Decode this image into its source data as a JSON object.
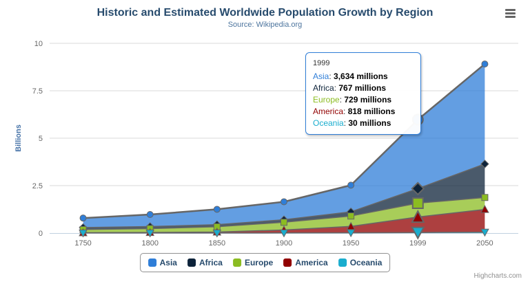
{
  "chart": {
    "title": "Historic and Estimated Worldwide Population Growth by Region",
    "subtitle": "Source: Wikipedia.org",
    "credits": "Highcharts.com"
  },
  "chart_data": {
    "type": "area",
    "stacking": "normal",
    "title": "Historic and Estimated Worldwide Population Growth by Region",
    "subtitle": "Source: Wikipedia.org",
    "categories": [
      "1750",
      "1800",
      "1850",
      "1900",
      "1950",
      "1999",
      "2050"
    ],
    "series": [
      {
        "name": "Asia",
        "color": "#2f7ed8",
        "marker": "circle",
        "values": [
          502,
          635,
          809,
          947,
          1402,
          3634,
          5268
        ]
      },
      {
        "name": "Africa",
        "color": "#0d233a",
        "marker": "diamond",
        "values": [
          106,
          107,
          111,
          133,
          221,
          767,
          1766
        ]
      },
      {
        "name": "Europe",
        "color": "#8bbc21",
        "marker": "square",
        "values": [
          163,
          203,
          276,
          408,
          547,
          729,
          628
        ]
      },
      {
        "name": "America",
        "color": "#910000",
        "marker": "triangle",
        "values": [
          18,
          31,
          54,
          156,
          339,
          818,
          1201
        ]
      },
      {
        "name": "Oceania",
        "color": "#1aadce",
        "marker": "triangle-down",
        "values": [
          2,
          2,
          2,
          6,
          13,
          30,
          46
        ]
      }
    ],
    "values_unit": "millions",
    "xlabel": "",
    "ylabel": "Billions",
    "ylim": [
      0,
      10
    ],
    "yticks": [
      0,
      2.5,
      5,
      7.5,
      10
    ],
    "grid": true,
    "legend_position": "bottom",
    "fill_opacity": 0.75,
    "edge_line_color": "#666666",
    "axis_line_color": "#c0d0e0",
    "grid_line_color": "#d8d8d8",
    "label_color": "#666666",
    "hover": {
      "category_index": 5,
      "category": "1999"
    }
  },
  "tooltip": {
    "header": "1999",
    "rows": [
      {
        "label": "Asia",
        "color": "#2f7ed8",
        "value": "3,634 millions"
      },
      {
        "label": "Africa",
        "color": "#0d233a",
        "value": "767 millions"
      },
      {
        "label": "Europe",
        "color": "#8bbc21",
        "value": "729 millions"
      },
      {
        "label": "America",
        "color": "#910000",
        "value": "818 millions"
      },
      {
        "label": "Oceania",
        "color": "#1aadce",
        "value": "30 millions"
      }
    ]
  }
}
